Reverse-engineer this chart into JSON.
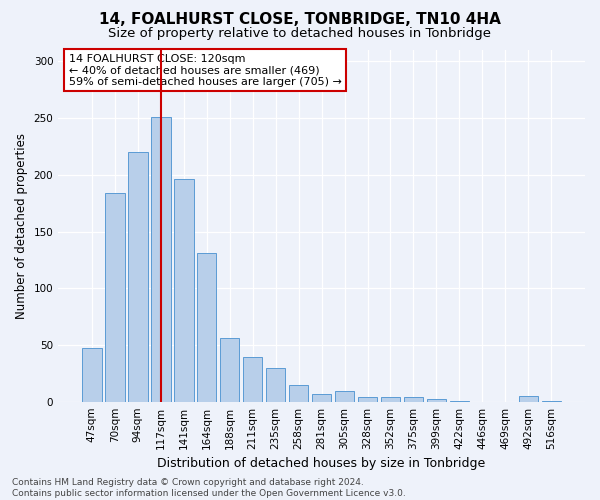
{
  "title": "14, FOALHURST CLOSE, TONBRIDGE, TN10 4HA",
  "subtitle": "Size of property relative to detached houses in Tonbridge",
  "xlabel": "Distribution of detached houses by size in Tonbridge",
  "ylabel": "Number of detached properties",
  "categories": [
    "47sqm",
    "70sqm",
    "94sqm",
    "117sqm",
    "141sqm",
    "164sqm",
    "188sqm",
    "211sqm",
    "235sqm",
    "258sqm",
    "281sqm",
    "305sqm",
    "328sqm",
    "352sqm",
    "375sqm",
    "399sqm",
    "422sqm",
    "446sqm",
    "469sqm",
    "492sqm",
    "516sqm"
  ],
  "values": [
    47,
    184,
    220,
    251,
    196,
    131,
    56,
    39,
    30,
    15,
    7,
    9,
    4,
    4,
    4,
    2,
    1,
    0,
    0,
    5,
    1
  ],
  "bar_color": "#b8cfea",
  "bar_edge_color": "#5b9bd5",
  "highlight_bar_index": 3,
  "highlight_line_color": "#cc0000",
  "background_color": "#eef2fa",
  "annotation_text": "14 FOALHURST CLOSE: 120sqm\n← 40% of detached houses are smaller (469)\n59% of semi-detached houses are larger (705) →",
  "annotation_box_color": "white",
  "annotation_box_edge_color": "#cc0000",
  "footer_text": "Contains HM Land Registry data © Crown copyright and database right 2024.\nContains public sector information licensed under the Open Government Licence v3.0.",
  "ylim": [
    0,
    310
  ],
  "yticks": [
    0,
    50,
    100,
    150,
    200,
    250,
    300
  ],
  "title_fontsize": 11,
  "subtitle_fontsize": 9.5,
  "xlabel_fontsize": 9,
  "ylabel_fontsize": 8.5,
  "tick_fontsize": 7.5,
  "annotation_fontsize": 8,
  "footer_fontsize": 6.5
}
